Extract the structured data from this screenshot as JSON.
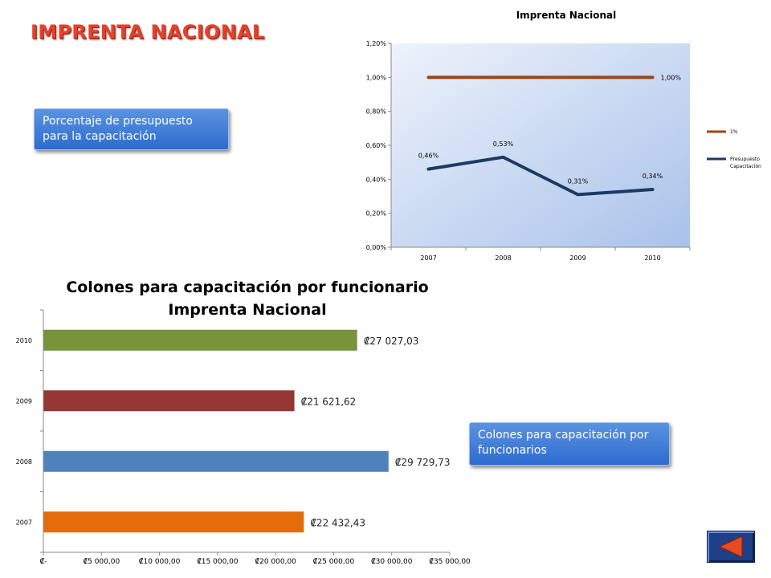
{
  "header": {
    "title": "IMPRENTA NACIONAL"
  },
  "callouts": {
    "budget": "Porcentaje de presupuesto para la capacitación",
    "colones": "Colones para capacitación por funcionarios"
  },
  "chart_data": [
    {
      "type": "line",
      "title": "Imprenta Nacional",
      "categories": [
        "2007",
        "2008",
        "2009",
        "2010"
      ],
      "ylim": [
        0,
        1.2
      ],
      "yticks": [
        "0,00%",
        "0,20%",
        "0,40%",
        "0,60%",
        "0,80%",
        "1,00%",
        "1,20%"
      ],
      "grid": false,
      "legend": "right",
      "series": [
        {
          "name": "1%",
          "values": [
            1.0,
            1.0,
            1.0,
            1.0
          ],
          "labels": [
            "",
            "",
            "",
            "1,00%"
          ],
          "color": "#a0450f"
        },
        {
          "name": "Presupuesto Capacitación",
          "values": [
            0.46,
            0.53,
            0.31,
            0.34
          ],
          "labels": [
            "0,46%",
            "0,53%",
            "0,31%",
            "0,34%"
          ],
          "color": "#1b3a66"
        }
      ]
    },
    {
      "type": "bar",
      "orientation": "horizontal",
      "title": "Colones para capacitación por funcionario Imprenta Nacional",
      "title_lines": [
        "Colones para capacitación por funcionario",
        "Imprenta Nacional"
      ],
      "categories": [
        "2007",
        "2008",
        "2009",
        "2010"
      ],
      "values": [
        22432.43,
        29729.73,
        21621.62,
        27027.03
      ],
      "labels": [
        "₡22 432,43",
        "₡29 729,73",
        "₡21 621,62",
        "₡27 027,03"
      ],
      "colors": [
        "#e36c0a",
        "#4f81bd",
        "#953735",
        "#77933c"
      ],
      "xlim": [
        0,
        35000
      ],
      "xticks": [
        "₡-",
        "₡5 000,00",
        "₡10 000,00",
        "₡15 000,00",
        "₡20 000,00",
        "₡25 000,00",
        "₡30 000,00",
        "₡35 000,00"
      ],
      "grid": false,
      "legend": "none"
    }
  ],
  "nav": {
    "back_icon": "triangle-left-icon"
  }
}
